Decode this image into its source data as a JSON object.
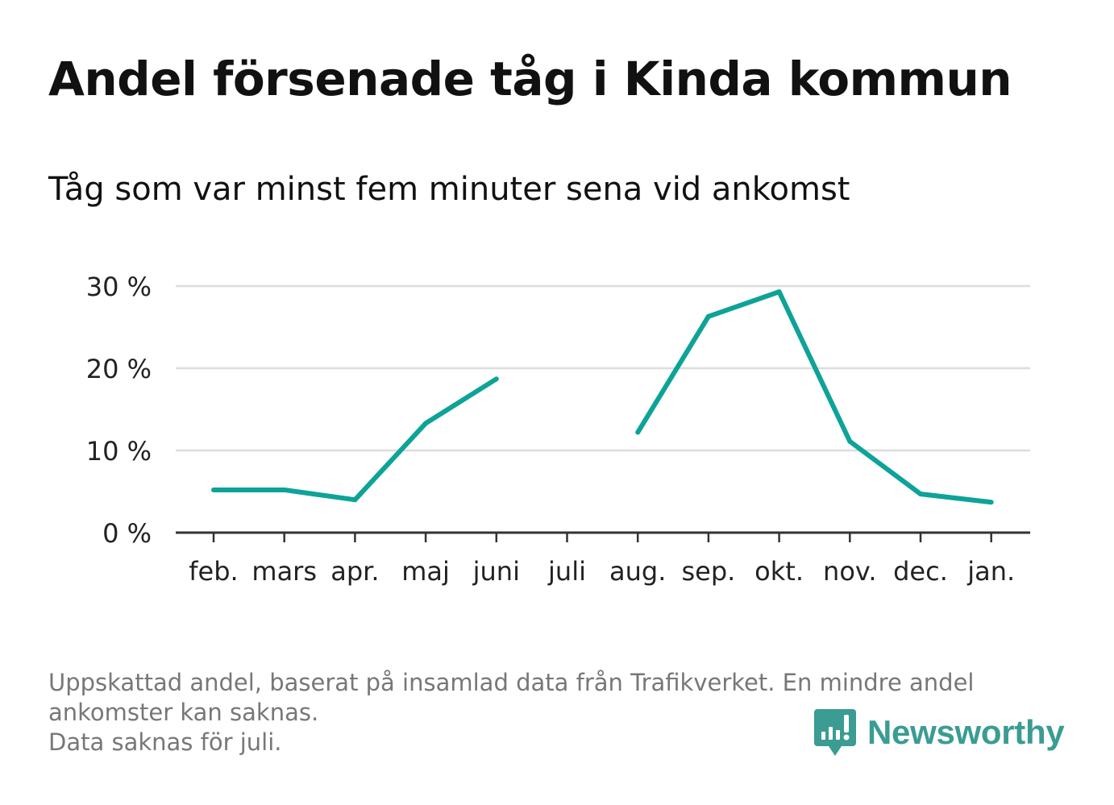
{
  "title": "Andel försenade tåg i Kinda kommun",
  "subtitle": "Tåg som var minst fem minuter sena vid ankomst",
  "footnote": {
    "line1": "Uppskattad andel, baserat på insamlad data från Trafikverket. En mindre andel",
    "line2": "ankomster kan saknas.",
    "line3": "Data saknas för juli."
  },
  "brand": {
    "name": "Newsworthy",
    "icon": "newsworthy-bar-chart-speech-bubble-icon",
    "color": "#3a9c93"
  },
  "colors": {
    "line": "#0da398",
    "grid": "#dddddd",
    "axis": "#333333",
    "text": "#111111",
    "footnote": "#777777"
  },
  "chart_data": {
    "type": "line",
    "title": "Andel försenade tåg i Kinda kommun",
    "subtitle": "Tåg som var minst fem minuter sena vid ankomst",
    "xlabel": "",
    "ylabel": "",
    "categories": [
      "feb.",
      "mars",
      "apr.",
      "maj",
      "juni",
      "juli",
      "aug.",
      "sep.",
      "okt.",
      "nov.",
      "dec.",
      "jan."
    ],
    "series": [
      {
        "values": [
          5.2,
          5.2,
          4.0,
          13.3,
          18.7,
          null,
          12.2,
          26.3,
          29.3,
          11.1,
          4.7,
          3.7
        ]
      }
    ],
    "ylim": [
      0,
      30
    ],
    "yticks": [
      0,
      10,
      20,
      30
    ],
    "ytick_labels": [
      "0 %",
      "10 %",
      "20 %",
      "30 %"
    ],
    "grid": true,
    "legend": "none"
  }
}
